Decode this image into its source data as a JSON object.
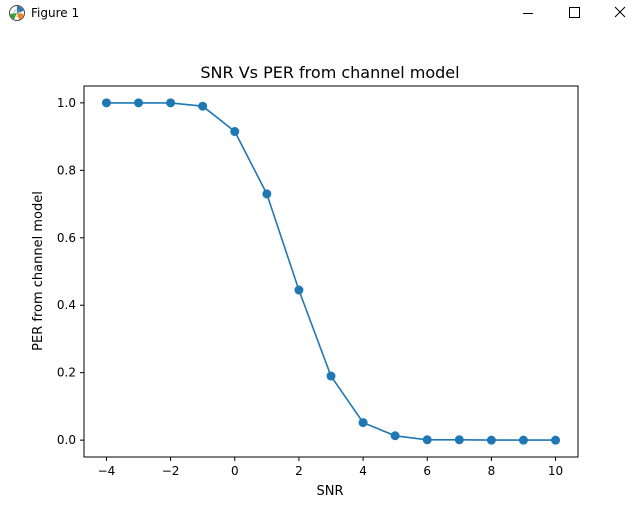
{
  "window": {
    "title": "Figure 1",
    "icon": "matplotlib-figure-icon",
    "controls": [
      "minimize",
      "maximize",
      "close"
    ]
  },
  "chart_data": {
    "type": "line",
    "title": "SNR Vs PER from channel model",
    "xlabel": "SNR",
    "ylabel": "PER from channel model",
    "x": [
      -4,
      -3,
      -2,
      -1,
      0,
      1,
      2,
      3,
      4,
      5,
      6,
      7,
      8,
      9,
      10
    ],
    "series": [
      {
        "values": [
          1.0,
          1.0,
          1.0,
          0.99,
          0.915,
          0.73,
          0.445,
          0.19,
          0.052,
          0.013,
          0.001,
          0.001,
          0.0,
          0.0,
          0.0
        ],
        "color": "#1f77b4",
        "marker": "circle"
      }
    ],
    "xlim": [
      -4.7,
      10.7
    ],
    "ylim": [
      -0.05,
      1.05
    ],
    "xticks": [
      -4,
      -2,
      0,
      2,
      4,
      6,
      8,
      10
    ],
    "xtick_labels": [
      "−4",
      "−2",
      "0",
      "2",
      "4",
      "6",
      "8",
      "10"
    ],
    "yticks": [
      0.0,
      0.2,
      0.4,
      0.6,
      0.8,
      1.0
    ],
    "ytick_labels": [
      "0.0",
      "0.2",
      "0.4",
      "0.6",
      "0.8",
      "1.0"
    ],
    "grid": false,
    "legend": "none"
  }
}
